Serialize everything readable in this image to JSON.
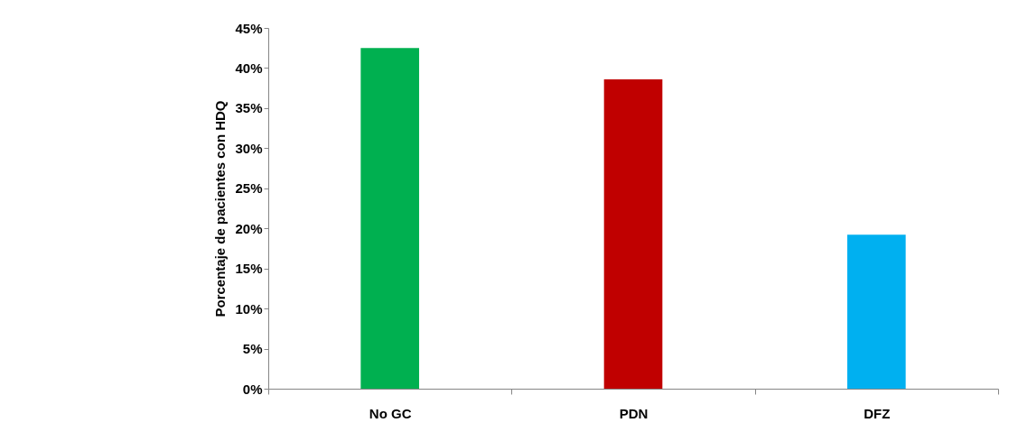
{
  "chart_data": {
    "type": "bar",
    "ylabel": "Porcentaje de pacientes con HDQ",
    "categories": [
      "No GC",
      "PDN",
      "DFZ"
    ],
    "values": [
      42.5,
      38.6,
      19.2
    ],
    "colors": [
      "#00b050",
      "#c00000",
      "#00b0f0"
    ],
    "ylim": [
      0,
      45
    ],
    "yticks": [
      {
        "value": 0,
        "label": "0%"
      },
      {
        "value": 5,
        "label": "5%"
      },
      {
        "value": 10,
        "label": "10%"
      },
      {
        "value": 15,
        "label": "15%"
      },
      {
        "value": 20,
        "label": "20%"
      },
      {
        "value": 25,
        "label": "25%"
      },
      {
        "value": 30,
        "label": "30%"
      },
      {
        "value": 35,
        "label": "35%"
      },
      {
        "value": 40,
        "label": "40%"
      },
      {
        "value": 45,
        "label": "45%"
      }
    ],
    "grid": false,
    "legend": false
  }
}
